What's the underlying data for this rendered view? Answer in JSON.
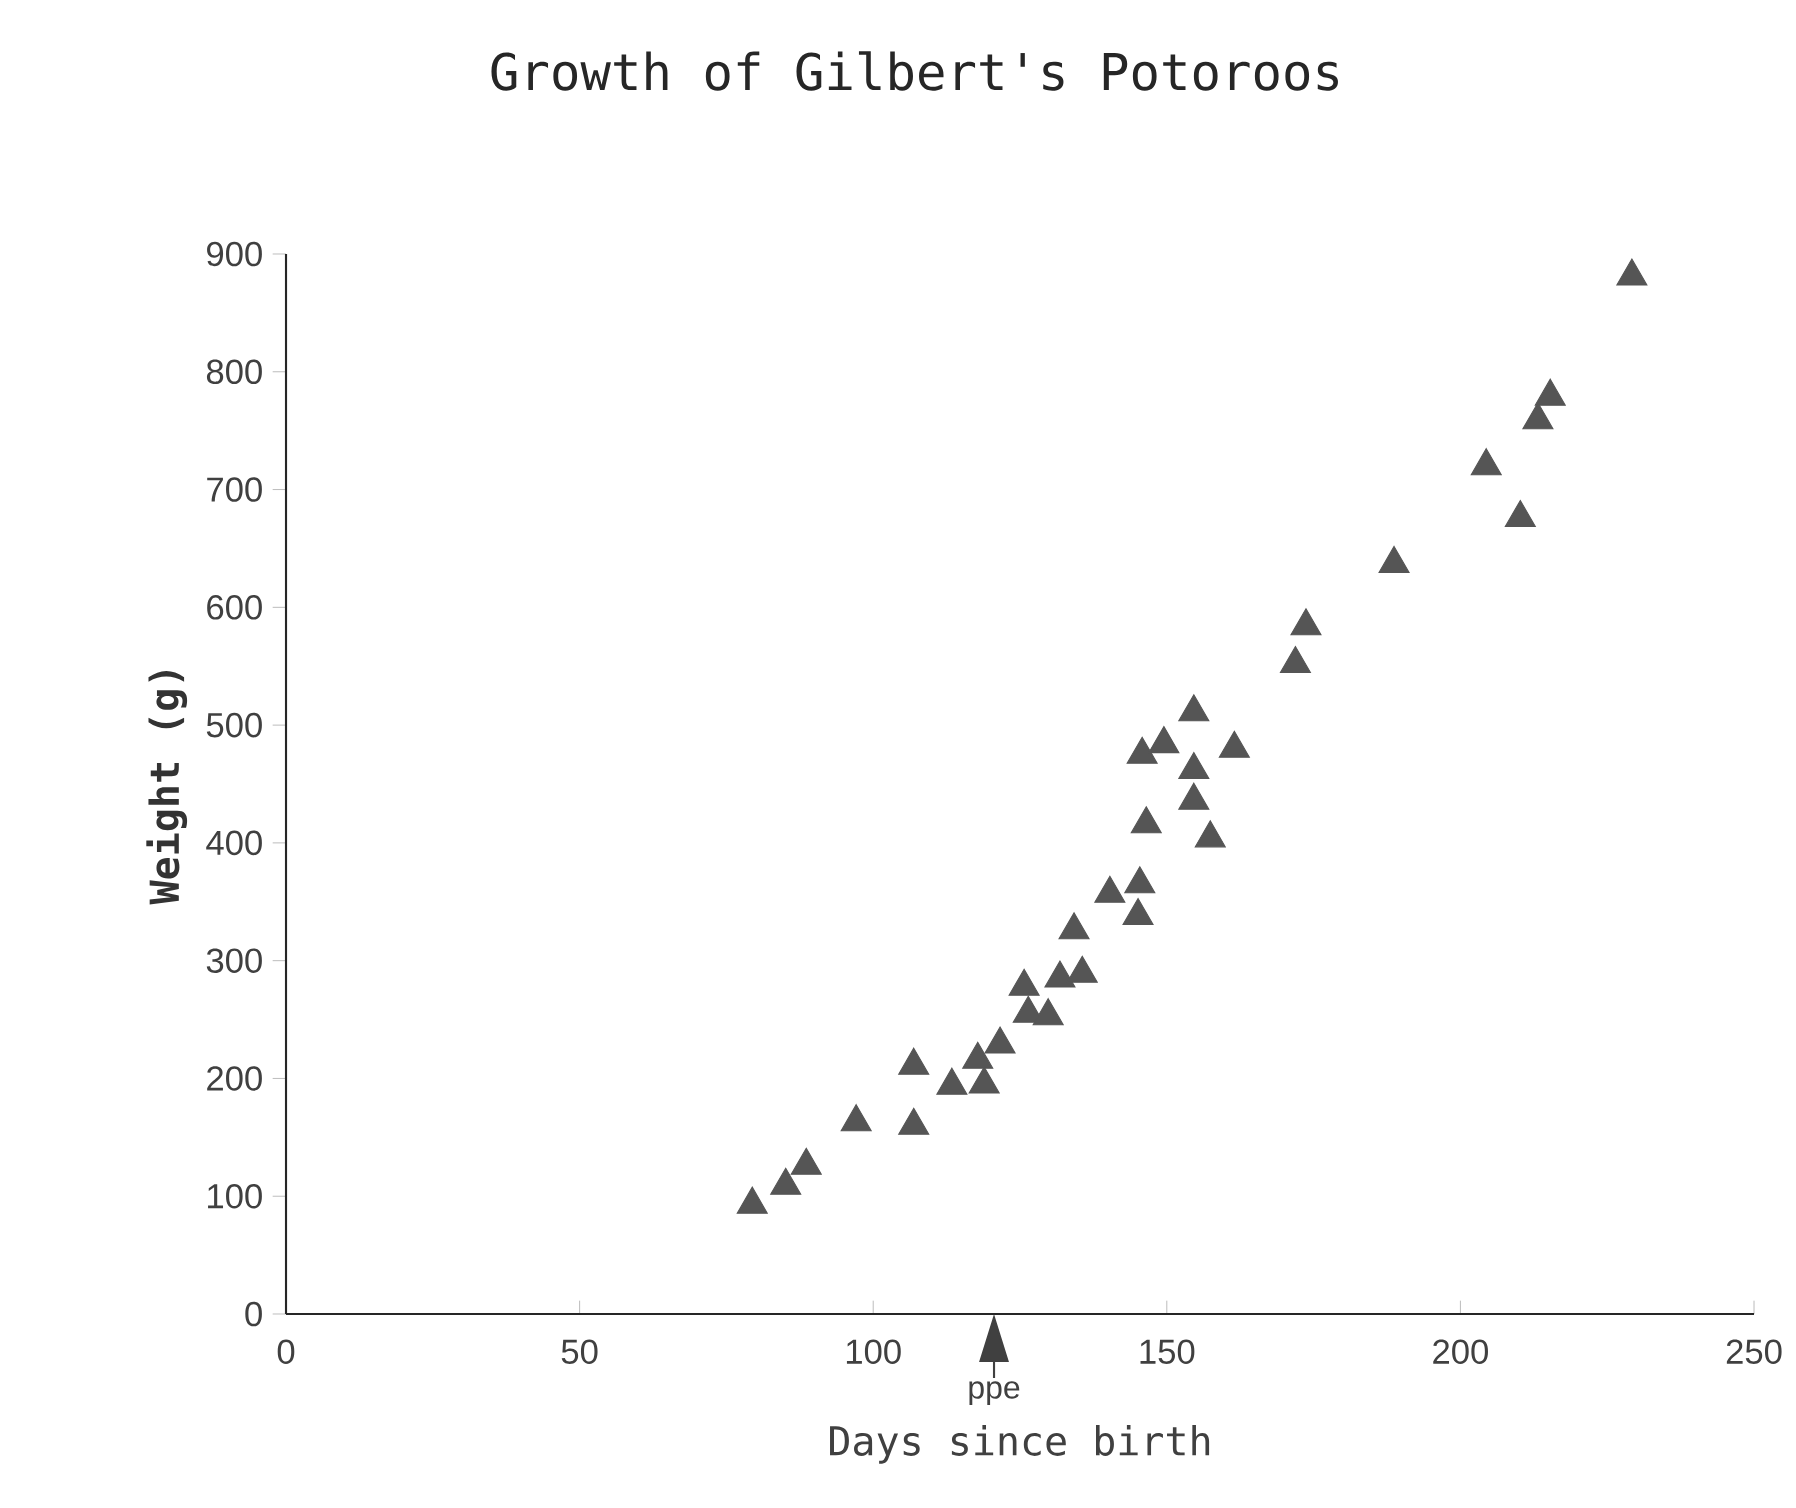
{
  "chart_data": {
    "type": "scatter",
    "title": "Growth of Gilbert's Potoroos",
    "xlabel": "Days since birth",
    "ylabel": "Weight (g)",
    "x": [
      79.4,
      85.1,
      88.6,
      97.1,
      106.9,
      106.9,
      113.4,
      117.8,
      118.9,
      121.6,
      125.7,
      126.4,
      129.8,
      131.8,
      135.6,
      134.2,
      140.3,
      145.4,
      145.1,
      146.5,
      145.8,
      149.5,
      154.6,
      154.6,
      154.6,
      157.4,
      161.5,
      171.9,
      173.7,
      188.7,
      204.4,
      210.2,
      213.2,
      215.3,
      229.2
    ],
    "values": [
      93,
      109,
      126,
      163,
      211,
      160,
      194,
      216,
      195,
      229,
      278,
      255,
      253,
      285,
      289,
      326,
      357,
      365,
      338,
      416,
      475,
      484,
      511,
      462,
      436,
      404,
      480,
      552,
      584,
      637,
      720,
      676,
      759,
      779,
      881
    ],
    "color": "#555555",
    "marker": "triangle",
    "xlim": [
      0,
      250
    ],
    "xticks": [
      0,
      50,
      100,
      150,
      200,
      250
    ],
    "ylim": [
      0,
      900
    ],
    "yticks": [
      0,
      100,
      200,
      300,
      400,
      500,
      600,
      700,
      800,
      900
    ],
    "grid": false,
    "annotations": [
      "ppe"
    ]
  }
}
